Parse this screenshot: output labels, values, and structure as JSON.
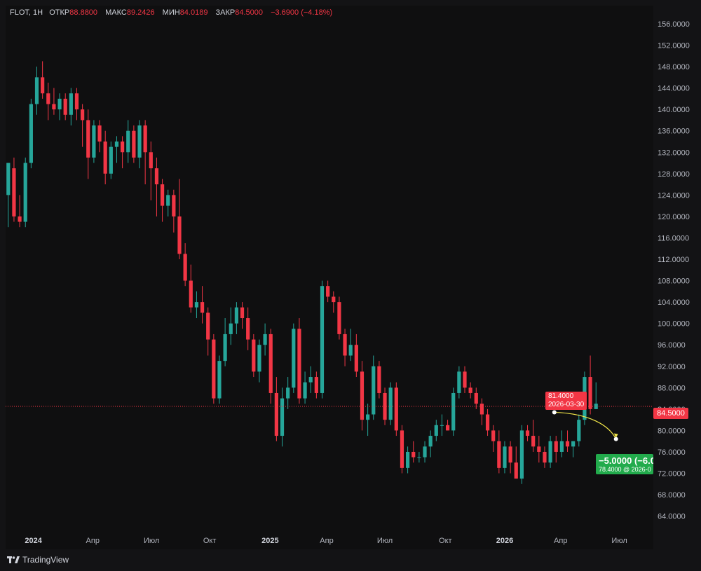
{
  "legend": {
    "symbol": "FLOT, 1H",
    "open_label": "ОТКР",
    "open": "88.8800",
    "high_label": "МАКС",
    "high": "89.2426",
    "low_label": "МИН",
    "low": "84.0189",
    "close_label": "ЗАКР",
    "close": "84.5000",
    "change": "−3.6900 (−4.18%)"
  },
  "price_tag": "84.5000",
  "point_label": {
    "value": "81.4000",
    "date": "2026-03-30"
  },
  "projection": {
    "change": "−5.0000 (−6.0",
    "detail": "78.4000 @ 2026-0"
  },
  "branding": "TradingView",
  "colors": {
    "up": "#26a69a",
    "down": "#f23645",
    "projection": "#22ab4c",
    "arrow": "#f5e94a"
  },
  "chart_data": {
    "type": "candlestick",
    "ylim": [
      61.2,
      159.4
    ],
    "y_ticks": [
      "156.0000",
      "152.0000",
      "148.0000",
      "144.0000",
      "140.0000",
      "136.0000",
      "132.0000",
      "128.0000",
      "124.0000",
      "120.0000",
      "116.0000",
      "112.0000",
      "108.0000",
      "104.0000",
      "100.0000",
      "96.0000",
      "92.0000",
      "88.0000",
      "84.0000",
      "80.0000",
      "76.0000",
      "72.0000",
      "68.0000",
      "64.0000"
    ],
    "x_ticks": [
      {
        "label": "2024",
        "idx": 4.4,
        "bold": true
      },
      {
        "label": "Апр",
        "idx": 14.8,
        "bold": false
      },
      {
        "label": "Июл",
        "idx": 25.1,
        "bold": false
      },
      {
        "label": "Окт",
        "idx": 35.3,
        "bold": false
      },
      {
        "label": "2025",
        "idx": 45.9,
        "bold": true
      },
      {
        "label": "Апр",
        "idx": 55.8,
        "bold": false
      },
      {
        "label": "Июл",
        "idx": 66.0,
        "bold": false
      },
      {
        "label": "Окт",
        "idx": 76.6,
        "bold": false
      },
      {
        "label": "2026",
        "idx": 87.0,
        "bold": true
      },
      {
        "label": "Апр",
        "idx": 96.8,
        "bold": false
      },
      {
        "label": "Июл",
        "idx": 107.1,
        "bold": false
      }
    ],
    "last_price": 84.5,
    "projection": {
      "from": 83.4,
      "to": 78.4
    },
    "candles": [
      [
        124,
        130,
        118,
        130
      ],
      [
        129,
        131,
        119,
        120
      ],
      [
        120,
        124,
        118,
        119
      ],
      [
        119,
        131,
        118,
        130
      ],
      [
        130,
        142,
        129,
        141
      ],
      [
        141,
        148,
        139,
        146
      ],
      [
        146,
        149,
        142,
        143
      ],
      [
        143,
        145,
        138,
        141
      ],
      [
        141,
        144,
        139,
        140
      ],
      [
        140,
        143,
        138,
        142
      ],
      [
        142,
        143,
        138,
        139
      ],
      [
        139,
        144,
        137,
        143
      ],
      [
        143,
        144,
        138,
        140
      ],
      [
        140,
        141,
        133,
        138
      ],
      [
        138,
        140,
        127,
        131
      ],
      [
        131,
        138,
        130,
        137
      ],
      [
        137,
        138,
        132,
        134
      ],
      [
        134,
        136,
        126,
        128
      ],
      [
        128,
        134,
        127,
        133
      ],
      [
        133,
        135,
        130,
        134
      ],
      [
        134,
        135,
        129,
        132
      ],
      [
        132,
        138,
        130,
        136
      ],
      [
        136,
        137,
        130,
        131
      ],
      [
        131,
        138,
        129,
        137
      ],
      [
        137,
        138,
        126,
        132
      ],
      [
        132,
        134,
        123,
        129
      ],
      [
        129,
        131,
        120,
        126
      ],
      [
        126,
        127,
        119,
        122
      ],
      [
        122,
        125,
        120,
        124
      ],
      [
        124,
        125,
        117,
        120
      ],
      [
        120,
        127,
        112,
        113
      ],
      [
        113,
        115,
        107,
        108
      ],
      [
        108,
        111,
        102,
        103
      ],
      [
        103,
        106,
        101,
        104
      ],
      [
        104,
        107,
        100,
        102
      ],
      [
        102,
        103,
        94,
        97
      ],
      [
        97,
        98,
        85,
        86
      ],
      [
        86,
        94,
        85,
        93
      ],
      [
        93,
        101,
        92,
        98
      ],
      [
        98,
        103,
        96,
        100
      ],
      [
        100,
        104,
        98,
        103
      ],
      [
        103,
        104,
        99,
        101
      ],
      [
        101,
        103,
        95,
        97
      ],
      [
        97,
        98,
        90,
        91
      ],
      [
        91,
        97,
        89,
        96
      ],
      [
        96,
        100,
        94,
        98
      ],
      [
        98,
        99,
        85,
        87
      ],
      [
        87,
        90,
        78,
        79
      ],
      [
        79,
        88,
        77,
        86
      ],
      [
        86,
        90,
        84,
        88
      ],
      [
        88,
        100,
        87,
        99
      ],
      [
        99,
        101,
        85,
        86
      ],
      [
        86,
        91,
        85,
        89
      ],
      [
        89,
        92,
        87,
        90
      ],
      [
        90,
        91,
        86,
        87
      ],
      [
        87,
        108,
        86,
        107
      ],
      [
        107,
        108,
        104,
        105
      ],
      [
        105,
        106,
        102,
        104
      ],
      [
        104,
        105,
        97,
        98
      ],
      [
        98,
        99,
        92,
        94
      ],
      [
        94,
        99,
        93,
        96
      ],
      [
        96,
        98,
        90,
        91
      ],
      [
        91,
        93,
        80,
        82
      ],
      [
        82,
        85,
        79,
        83
      ],
      [
        83,
        94,
        82,
        92
      ],
      [
        92,
        93,
        86,
        87
      ],
      [
        87,
        88,
        81,
        82
      ],
      [
        82,
        89,
        81,
        88
      ],
      [
        88,
        89,
        79,
        80
      ],
      [
        80,
        81,
        72,
        73
      ],
      [
        73,
        77,
        72,
        76
      ],
      [
        76,
        78,
        74,
        75
      ],
      [
        75,
        76,
        74,
        75
      ],
      [
        75,
        78,
        74,
        77
      ],
      [
        77,
        80,
        75,
        79
      ],
      [
        79,
        82,
        78,
        81
      ],
      [
        81,
        83,
        79,
        81
      ],
      [
        81,
        82,
        80,
        80
      ],
      [
        80,
        88,
        79,
        87
      ],
      [
        87,
        92,
        86,
        91
      ],
      [
        91,
        92,
        87,
        88
      ],
      [
        88,
        89,
        86,
        87
      ],
      [
        87,
        88,
        84,
        85
      ],
      [
        85,
        86,
        81,
        83
      ],
      [
        83,
        84,
        79,
        80
      ],
      [
        80,
        81,
        76,
        78
      ],
      [
        78,
        80,
        72,
        73
      ],
      [
        73,
        78,
        72,
        77
      ],
      [
        77,
        78,
        72,
        74
      ],
      [
        74,
        77,
        71,
        71
      ],
      [
        71,
        81,
        70,
        80
      ],
      [
        80,
        81,
        78,
        79
      ],
      [
        79,
        82,
        76,
        77
      ],
      [
        77,
        79,
        74,
        76
      ],
      [
        76,
        77,
        73,
        74
      ],
      [
        74,
        79,
        73,
        78
      ],
      [
        78,
        79,
        74,
        76
      ],
      [
        76,
        80,
        75,
        78
      ],
      [
        78,
        80,
        76,
        77
      ],
      [
        77,
        78,
        75,
        78
      ],
      [
        78,
        83,
        77,
        82
      ],
      [
        82,
        91,
        81,
        90
      ],
      [
        90,
        94,
        83,
        84
      ],
      [
        84,
        89,
        84,
        85
      ]
    ]
  }
}
